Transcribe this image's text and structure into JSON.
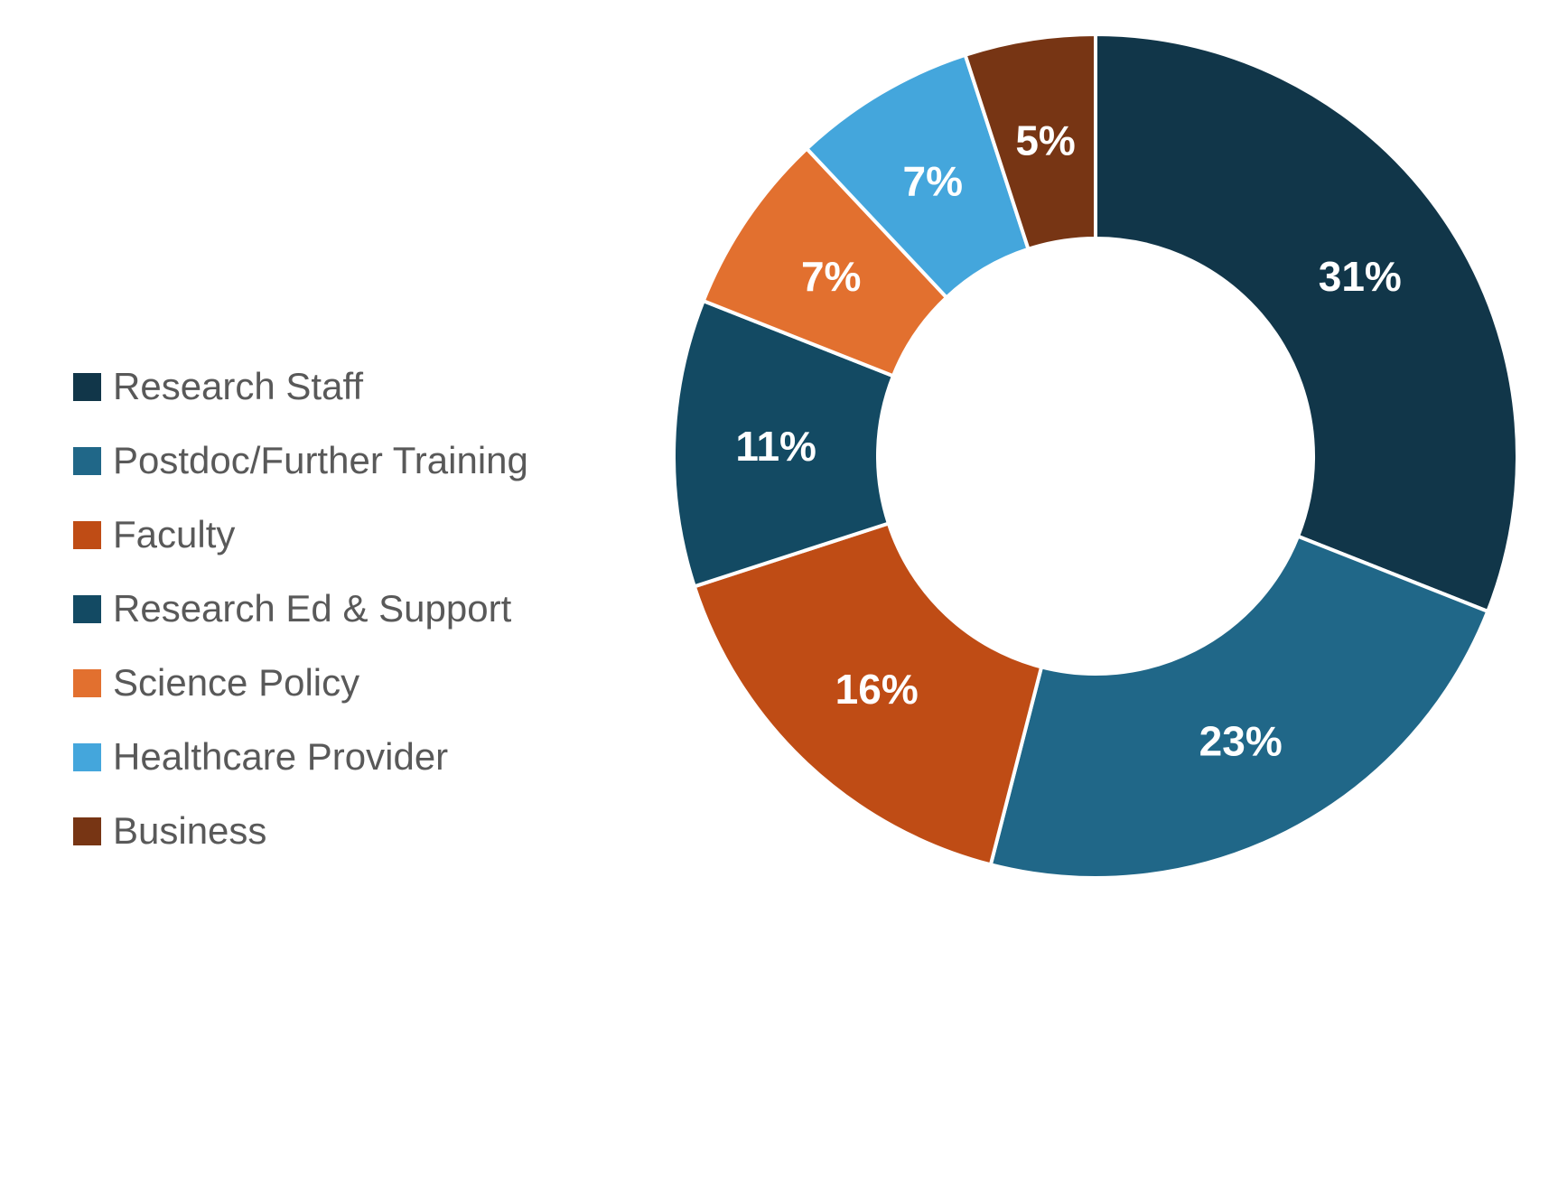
{
  "chart_data": {
    "type": "pie",
    "subtype": "donut",
    "title": "",
    "categories": [
      "Research Staff",
      "Postdoc/Further Training",
      "Faculty",
      "Research Ed & Support",
      "Science Policy",
      "Healthcare Provider",
      "Business"
    ],
    "values": [
      31,
      23,
      16,
      11,
      7,
      7,
      5
    ],
    "data_labels": [
      "31%",
      "23%",
      "16%",
      "11%",
      "7%",
      "7%",
      "5%"
    ],
    "series_colors": [
      "#113649",
      "#206788",
      "#BF4C15",
      "#134A63",
      "#E2702F",
      "#44A6DC",
      "#773514"
    ],
    "start_angle_deg": 0,
    "direction": "clockwise",
    "donut_hole_ratio": 0.52,
    "slice_separator_color": "#FFFFFF",
    "data_label_color": "#FFFFFF",
    "legend_position": "left",
    "legend_text_color": "#595959",
    "background_color": "#FFFFFF"
  },
  "legend": {
    "items": [
      {
        "label": "Research Staff",
        "color": "#113649"
      },
      {
        "label": "Postdoc/Further Training",
        "color": "#206788"
      },
      {
        "label": "Faculty",
        "color": "#BF4C15"
      },
      {
        "label": "Research Ed & Support",
        "color": "#134A63"
      },
      {
        "label": "Science Policy",
        "color": "#E2702F"
      },
      {
        "label": "Healthcare Provider",
        "color": "#44A6DC"
      },
      {
        "label": "Business",
        "color": "#773514"
      }
    ]
  }
}
